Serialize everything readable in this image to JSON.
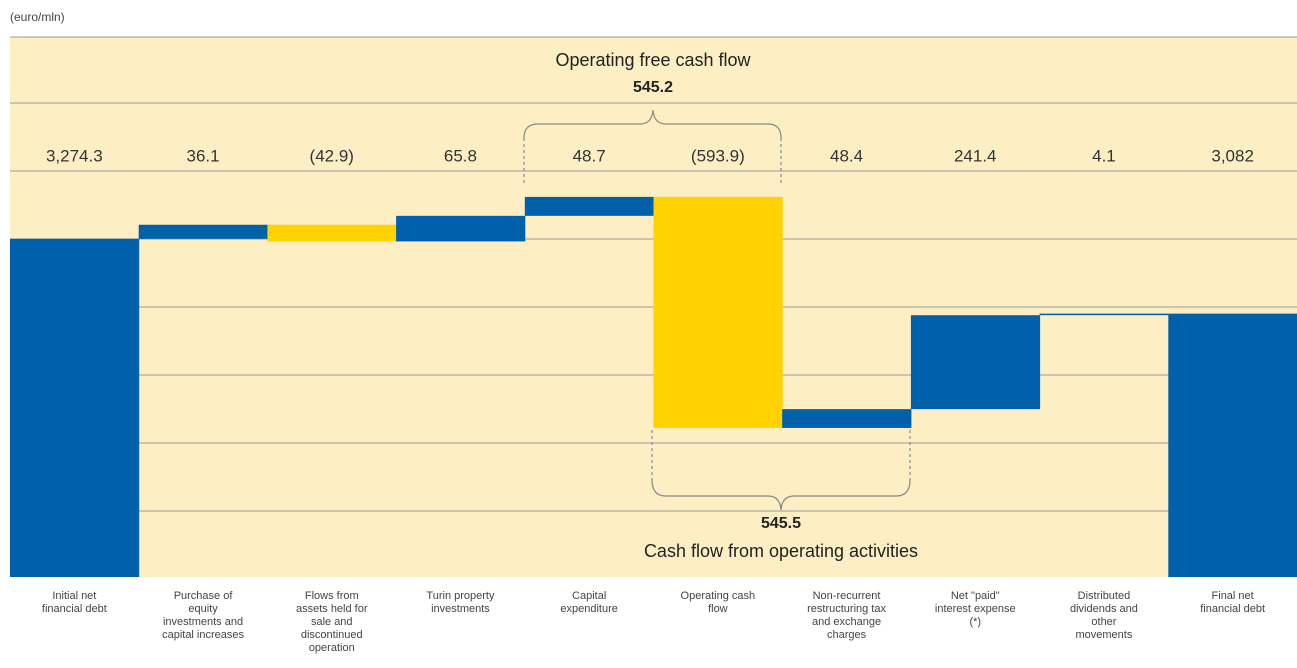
{
  "chart_data": {
    "type": "waterfall",
    "unit_label": "(euro/mln)",
    "annotations": [
      {
        "title": "Operating free cash flow",
        "value": "545.2"
      },
      {
        "title": "Cash flow from operating activities",
        "value": "545.5"
      }
    ],
    "categories": [
      "Initial net financial debt",
      "Purchase of equity investments and capital increases",
      "Flows from assets held for sale and discontinued operation",
      "Turin property investments",
      "Capital expenditure",
      "Operating cash flow",
      "Non-recurrent restructuring tax and exchange charges",
      "Net \"paid\" interest expense (*)",
      "Distributed dividends and other movements",
      "Final net financial debt"
    ],
    "values": [
      3274.3,
      36.1,
      -42.9,
      65.8,
      48.7,
      -593.9,
      48.4,
      241.4,
      4.1,
      3082
    ],
    "value_labels": [
      "3,274.3",
      "36.1",
      "(42.9)",
      "65.8",
      "48.7",
      "(593.9)",
      "48.4",
      "241.4",
      "4.1",
      "3,082"
    ],
    "measure": [
      "absolute",
      "relative",
      "relative",
      "relative",
      "relative",
      "relative",
      "relative",
      "relative",
      "relative",
      "total"
    ],
    "increase_color": "#0061aa",
    "decrease_color": "#ffd200",
    "total_color": "#0061aa",
    "ylim": [
      2405,
      3793
    ]
  }
}
